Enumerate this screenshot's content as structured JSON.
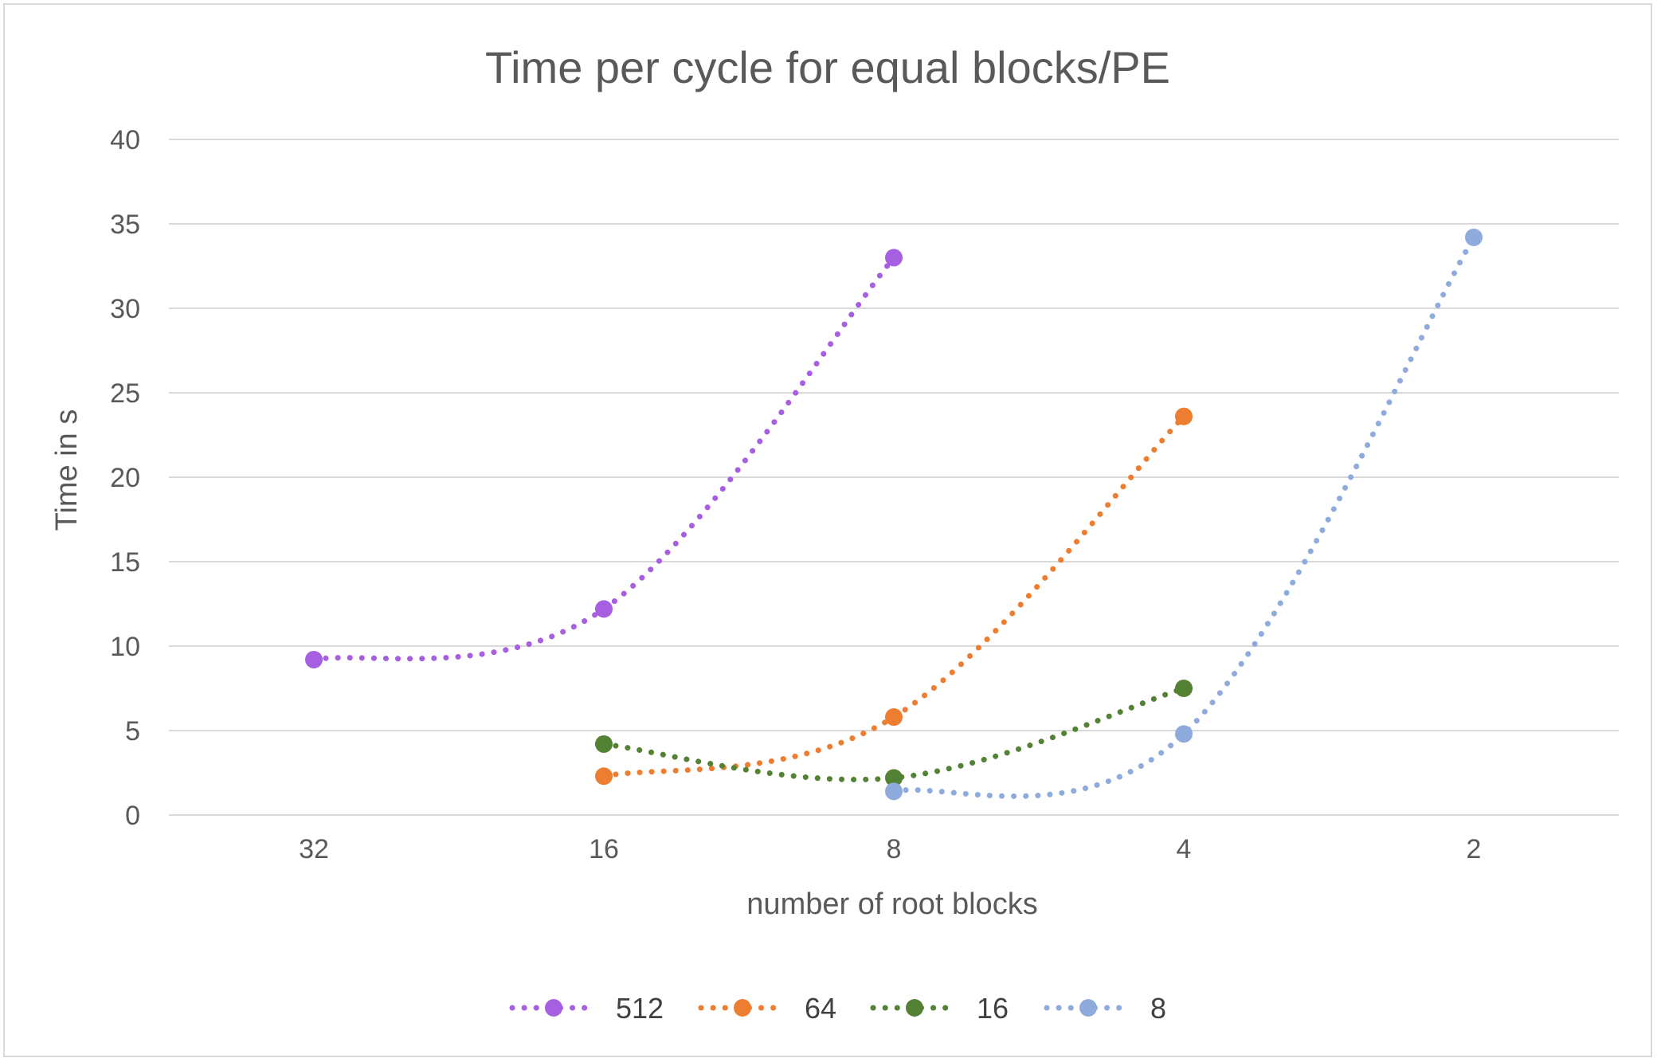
{
  "chart_data": {
    "type": "line",
    "title": "Time per cycle for equal blocks/PE",
    "xlabel": "number of root blocks",
    "ylabel": "Time in s",
    "categories": [
      "32",
      "16",
      "8",
      "4",
      "2"
    ],
    "ylim": [
      0,
      40
    ],
    "yticks": [
      0,
      5,
      10,
      15,
      20,
      25,
      30,
      35,
      40
    ],
    "grid": true,
    "legend_position": "bottom",
    "line_style": "dotted",
    "series": [
      {
        "name": "512",
        "color": "#a55fe0",
        "values": [
          9.2,
          12.2,
          33.0,
          null,
          null
        ]
      },
      {
        "name": "64",
        "color": "#ed7d31",
        "values": [
          null,
          2.3,
          5.8,
          23.6,
          null
        ]
      },
      {
        "name": "16",
        "color": "#548235",
        "values": [
          null,
          4.2,
          2.2,
          7.5,
          null
        ]
      },
      {
        "name": "8",
        "color": "#8faadc",
        "values": [
          null,
          null,
          1.4,
          4.8,
          34.2
        ]
      }
    ]
  }
}
